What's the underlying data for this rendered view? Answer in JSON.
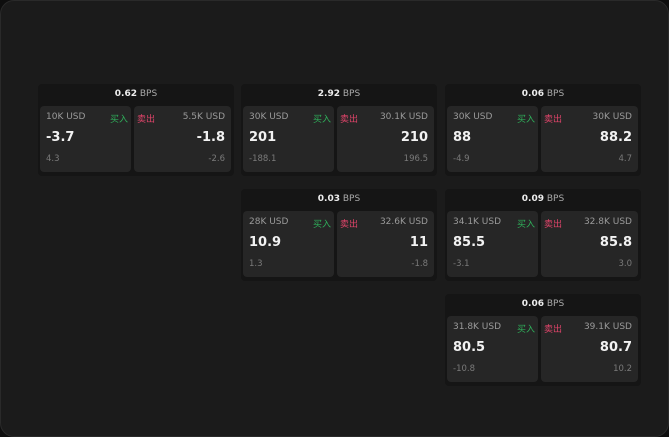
{
  "unit": "BPS",
  "buy_label": "买入",
  "sell_label": "卖出",
  "colors": {
    "buy": "#2fae5a",
    "sell": "#e0446a",
    "background": "#1b1b1b"
  },
  "widgets": [
    {
      "spread": "0.62",
      "buy": {
        "size": "10K USD",
        "price": "-3.7",
        "change": "4.3"
      },
      "sell": {
        "size": "5.5K USD",
        "price": "-1.8",
        "change": "-2.6"
      }
    },
    {
      "spread": "2.92",
      "buy": {
        "size": "30K USD",
        "price": "201",
        "change": "-188.1"
      },
      "sell": {
        "size": "30.1K USD",
        "price": "210",
        "change": "196.5"
      }
    },
    {
      "spread": "0.06",
      "buy": {
        "size": "30K USD",
        "price": "88",
        "change": "-4.9"
      },
      "sell": {
        "size": "30K USD",
        "price": "88.2",
        "change": "4.7"
      }
    },
    {
      "spread": "0.03",
      "buy": {
        "size": "28K USD",
        "price": "10.9",
        "change": "1.3"
      },
      "sell": {
        "size": "32.6K USD",
        "price": "11",
        "change": "-1.8"
      }
    },
    {
      "spread": "0.09",
      "buy": {
        "size": "34.1K USD",
        "price": "85.5",
        "change": "-3.1"
      },
      "sell": {
        "size": "32.8K USD",
        "price": "85.8",
        "change": "3.0"
      }
    },
    {
      "spread": "0.06",
      "buy": {
        "size": "31.8K USD",
        "price": "80.5",
        "change": "-10.8"
      },
      "sell": {
        "size": "39.1K USD",
        "price": "80.7",
        "change": "10.2"
      }
    }
  ]
}
